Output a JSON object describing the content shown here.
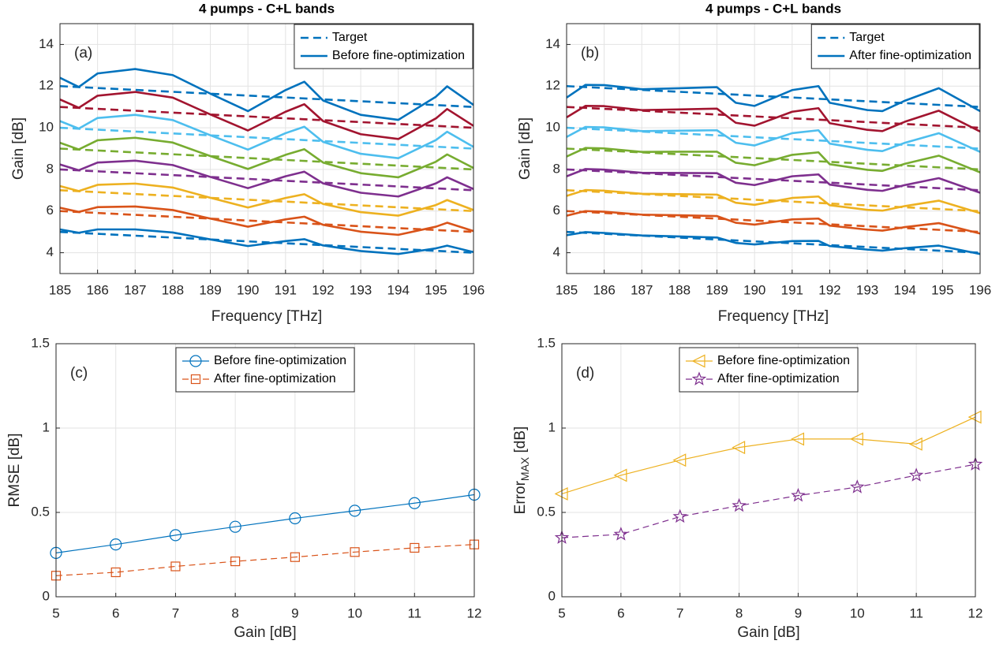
{
  "chart_data": [
    {
      "type": "line",
      "title": "4 pumps - C+L bands",
      "panel_label": "(a)",
      "xlabel": "Frequency [THz]",
      "ylabel": "Gain [dB]",
      "xlim": [
        185,
        196
      ],
      "ylim": [
        3,
        15
      ],
      "xticks": [
        185,
        186,
        187,
        188,
        189,
        190,
        191,
        192,
        193,
        194,
        195,
        196
      ],
      "yticks": [
        4,
        6,
        8,
        10,
        12,
        14
      ],
      "grid": true,
      "legend_location": "northeast",
      "series": [
        {
          "name": "Target",
          "color": "#0072BD",
          "line_style": "dashed",
          "x": [
            185,
            196
          ],
          "values": [
            5,
            4
          ]
        },
        {
          "name": "Before fine-optimization",
          "color": "#0072BD",
          "line_style": "solid",
          "x": [
            185,
            185.5,
            186,
            187,
            188,
            189,
            190,
            191,
            191.5,
            192,
            193,
            194,
            195,
            195.3,
            196
          ],
          "values": [
            5.12,
            4.96,
            5.12,
            5.12,
            4.97,
            4.64,
            4.32,
            4.56,
            4.65,
            4.35,
            4.08,
            3.94,
            4.21,
            4.34,
            4.03
          ]
        },
        {
          "color": "#D95319",
          "line_style": "dashed",
          "x": [
            185,
            196
          ],
          "values": [
            6,
            5
          ]
        },
        {
          "color": "#D95319",
          "line_style": "solid",
          "x": [
            185,
            185.5,
            186,
            187,
            188,
            189,
            190,
            191,
            191.5,
            192,
            193,
            194,
            195,
            195.3,
            196
          ],
          "values": [
            6.16,
            5.96,
            6.19,
            6.22,
            6.05,
            5.64,
            5.25,
            5.6,
            5.73,
            5.34,
            5.01,
            4.86,
            5.25,
            5.44,
            5.04
          ]
        },
        {
          "color": "#EDB120",
          "line_style": "dashed",
          "x": [
            185,
            196
          ],
          "values": [
            7,
            6
          ]
        },
        {
          "color": "#EDB120",
          "line_style": "solid",
          "x": [
            185,
            185.5,
            186,
            187,
            188,
            189,
            190,
            191,
            191.5,
            192,
            193,
            194,
            195,
            195.3,
            196
          ],
          "values": [
            7.2,
            6.96,
            7.26,
            7.32,
            7.13,
            6.64,
            6.17,
            6.63,
            6.81,
            6.34,
            5.95,
            5.78,
            6.29,
            6.53,
            6.05
          ]
        },
        {
          "color": "#7E2F8E",
          "line_style": "dashed",
          "x": [
            185,
            196
          ],
          "values": [
            8,
            7
          ]
        },
        {
          "color": "#7E2F8E",
          "line_style": "solid",
          "x": [
            185,
            185.5,
            186,
            187,
            188,
            189,
            190,
            191,
            191.5,
            192,
            193,
            194,
            195,
            195.3,
            196
          ],
          "values": [
            8.24,
            7.96,
            8.33,
            8.42,
            8.21,
            7.64,
            7.1,
            7.67,
            7.89,
            7.33,
            6.88,
            6.7,
            7.33,
            7.62,
            7.06
          ]
        },
        {
          "color": "#77AC30",
          "line_style": "dashed",
          "x": [
            185,
            196
          ],
          "values": [
            9,
            8
          ]
        },
        {
          "color": "#77AC30",
          "line_style": "solid",
          "x": [
            185,
            185.5,
            186,
            187,
            188,
            189,
            190,
            191,
            191.5,
            192,
            193,
            194,
            195,
            195.3,
            196
          ],
          "values": [
            9.28,
            8.96,
            9.4,
            9.52,
            9.29,
            8.64,
            8.02,
            8.7,
            8.97,
            8.33,
            7.82,
            7.62,
            8.37,
            8.72,
            8.07
          ]
        },
        {
          "color": "#4DBEEE",
          "line_style": "dashed",
          "x": [
            185,
            196
          ],
          "values": [
            10,
            9
          ]
        },
        {
          "color": "#4DBEEE",
          "line_style": "solid",
          "x": [
            185,
            185.5,
            186,
            187,
            188,
            189,
            190,
            191,
            191.5,
            192,
            193,
            194,
            195,
            195.3,
            196
          ],
          "values": [
            10.32,
            9.96,
            10.47,
            10.62,
            10.37,
            9.64,
            8.95,
            9.74,
            10.05,
            9.32,
            8.75,
            8.54,
            9.41,
            9.81,
            9.08
          ]
        },
        {
          "color": "#A2142F",
          "line_style": "dashed",
          "x": [
            185,
            196
          ],
          "values": [
            11,
            10
          ]
        },
        {
          "color": "#A2142F",
          "line_style": "solid",
          "x": [
            185,
            185.5,
            186,
            187,
            188,
            189,
            190,
            191,
            191.5,
            192,
            193,
            194,
            195,
            195.3,
            196
          ],
          "values": [
            11.36,
            10.96,
            11.54,
            11.72,
            11.45,
            10.64,
            9.87,
            10.77,
            11.13,
            10.32,
            9.69,
            9.46,
            10.45,
            10.9,
            10.09
          ]
        },
        {
          "color": "#0072BD",
          "line_style": "dashed",
          "x": [
            185,
            196
          ],
          "values": [
            12,
            11
          ]
        },
        {
          "color": "#0072BD",
          "line_style": "solid",
          "x": [
            185,
            185.5,
            186,
            187,
            188,
            189,
            190,
            191,
            191.5,
            192,
            193,
            194,
            195,
            195.3,
            196
          ],
          "values": [
            12.4,
            11.96,
            12.61,
            12.82,
            12.53,
            11.64,
            10.8,
            11.81,
            12.21,
            11.31,
            10.62,
            10.38,
            11.49,
            11.99,
            11.1
          ]
        }
      ]
    },
    {
      "type": "line",
      "title": "4 pumps - C+L bands",
      "panel_label": "(b)",
      "xlabel": "Frequency [THz]",
      "ylabel": "Gain [dB]",
      "xlim": [
        185,
        196
      ],
      "ylim": [
        3,
        15
      ],
      "xticks": [
        185,
        186,
        187,
        188,
        189,
        190,
        191,
        192,
        193,
        194,
        195,
        196
      ],
      "yticks": [
        4,
        6,
        8,
        10,
        12,
        14
      ],
      "grid": true,
      "legend_location": "northeast",
      "series": [
        {
          "name": "Target",
          "color": "#0072BD",
          "line_style": "dashed",
          "x": [
            185,
            196
          ],
          "values": [
            5,
            4
          ]
        },
        {
          "name": "After fine-optimization",
          "color": "#0072BD",
          "line_style": "solid",
          "x": [
            185,
            185.5,
            186,
            187,
            188,
            189,
            189.5,
            190,
            191,
            191.7,
            192,
            193,
            193.4,
            194,
            194.9,
            196
          ],
          "values": [
            4.84,
            4.99,
            4.95,
            4.83,
            4.78,
            4.73,
            4.47,
            4.4,
            4.56,
            4.57,
            4.32,
            4.15,
            4.1,
            4.22,
            4.34,
            3.94
          ]
        },
        {
          "color": "#D95319",
          "line_style": "dashed",
          "x": [
            185,
            196
          ],
          "values": [
            6,
            5
          ]
        },
        {
          "color": "#D95319",
          "line_style": "solid",
          "x": [
            185,
            185.5,
            186,
            187,
            188,
            189,
            189.5,
            190,
            191,
            191.7,
            192,
            193,
            193.4,
            194,
            194.9,
            196
          ],
          "values": [
            5.78,
            6.0,
            5.97,
            5.83,
            5.8,
            5.76,
            5.44,
            5.35,
            5.6,
            5.64,
            5.3,
            5.11,
            5.06,
            5.23,
            5.42,
            4.92
          ]
        },
        {
          "color": "#EDB120",
          "line_style": "dashed",
          "x": [
            185,
            196
          ],
          "values": [
            7,
            6
          ]
        },
        {
          "color": "#EDB120",
          "line_style": "solid",
          "x": [
            185,
            185.5,
            186,
            187,
            188,
            189,
            189.5,
            190,
            191,
            191.7,
            192,
            193,
            193.4,
            194,
            194.9,
            196
          ],
          "values": [
            6.73,
            7.01,
            6.98,
            6.83,
            6.81,
            6.79,
            6.4,
            6.3,
            6.63,
            6.7,
            6.28,
            6.06,
            6.02,
            6.24,
            6.5,
            5.9
          ]
        },
        {
          "color": "#7E2F8E",
          "line_style": "dashed",
          "x": [
            185,
            196
          ],
          "values": [
            8,
            7
          ]
        },
        {
          "color": "#7E2F8E",
          "line_style": "solid",
          "x": [
            185,
            185.5,
            186,
            187,
            188,
            189,
            189.5,
            190,
            191,
            191.7,
            192,
            193,
            193.4,
            194,
            194.9,
            196
          ],
          "values": [
            7.67,
            8.02,
            7.99,
            7.84,
            7.83,
            7.82,
            7.36,
            7.25,
            7.67,
            7.76,
            7.27,
            7.02,
            6.97,
            7.25,
            7.58,
            6.88
          ]
        },
        {
          "color": "#77AC30",
          "line_style": "dashed",
          "x": [
            185,
            196
          ],
          "values": [
            9,
            8
          ]
        },
        {
          "color": "#77AC30",
          "line_style": "solid",
          "x": [
            185,
            185.5,
            186,
            187,
            188,
            189,
            189.5,
            190,
            191,
            191.7,
            192,
            193,
            193.4,
            194,
            194.9,
            196
          ],
          "values": [
            8.62,
            9.03,
            9.01,
            8.84,
            8.85,
            8.85,
            8.32,
            8.2,
            8.7,
            8.82,
            8.25,
            7.98,
            7.93,
            8.27,
            8.66,
            7.86
          ]
        },
        {
          "color": "#4DBEEE",
          "line_style": "dashed",
          "x": [
            185,
            196
          ],
          "values": [
            10,
            9
          ]
        },
        {
          "color": "#4DBEEE",
          "line_style": "solid",
          "x": [
            185,
            185.5,
            186,
            187,
            188,
            189,
            189.5,
            190,
            191,
            191.7,
            192,
            193,
            193.4,
            194,
            194.9,
            196
          ],
          "values": [
            9.56,
            10.04,
            10.02,
            9.84,
            9.86,
            9.88,
            9.28,
            9.15,
            9.74,
            9.88,
            9.24,
            8.94,
            8.88,
            9.28,
            9.74,
            8.84
          ]
        },
        {
          "color": "#A2142F",
          "line_style": "dashed",
          "x": [
            185,
            196
          ],
          "values": [
            11,
            10
          ]
        },
        {
          "color": "#A2142F",
          "line_style": "solid",
          "x": [
            185,
            185.5,
            186,
            187,
            188,
            189,
            189.5,
            190,
            191,
            191.7,
            192,
            193,
            193.4,
            194,
            194.9,
            196
          ],
          "values": [
            10.5,
            11.05,
            11.04,
            10.85,
            10.88,
            10.92,
            10.24,
            10.1,
            10.77,
            10.94,
            10.22,
            9.9,
            9.84,
            10.29,
            10.82,
            9.82
          ]
        },
        {
          "color": "#0072BD",
          "line_style": "dashed",
          "x": [
            185,
            196
          ],
          "values": [
            12,
            11
          ]
        },
        {
          "color": "#0072BD",
          "line_style": "solid",
          "x": [
            185,
            185.5,
            186,
            187,
            188,
            189,
            189.5,
            190,
            191,
            191.7,
            192,
            193,
            193.4,
            194,
            194.9,
            196
          ],
          "values": [
            11.45,
            12.06,
            12.05,
            11.85,
            11.9,
            11.95,
            11.2,
            11.05,
            11.81,
            12.0,
            11.2,
            10.85,
            10.8,
            11.3,
            11.9,
            10.8
          ]
        }
      ]
    },
    {
      "type": "line",
      "panel_label": "(c)",
      "xlabel": "Gain [dB]",
      "ylabel": "RMSE [dB]",
      "xlim": [
        5,
        12
      ],
      "ylim": [
        0,
        1.5
      ],
      "xticks": [
        5,
        6,
        7,
        8,
        9,
        10,
        11,
        12
      ],
      "yticks": [
        0,
        0.5,
        1,
        1.5
      ],
      "grid": true,
      "legend_location": "north",
      "x": [
        5,
        6,
        7,
        8,
        9,
        10,
        11,
        12
      ],
      "series": [
        {
          "name": "Before fine-optimization",
          "color": "#0072BD",
          "line_style": "solid",
          "marker": "circle",
          "values": [
            0.26,
            0.31,
            0.365,
            0.415,
            0.465,
            0.51,
            0.555,
            0.605
          ]
        },
        {
          "name": "After fine-optimization",
          "color": "#D95319",
          "line_style": "dashed",
          "marker": "square",
          "values": [
            0.125,
            0.145,
            0.18,
            0.21,
            0.235,
            0.265,
            0.29,
            0.31
          ]
        }
      ]
    },
    {
      "type": "line",
      "panel_label": "(d)",
      "xlabel": "Gain [dB]",
      "ylabel": {
        "text": "Error",
        "subscript": "MAX",
        "suffix": " [dB]"
      },
      "xlim": [
        5,
        12
      ],
      "ylim": [
        0,
        1.5
      ],
      "xticks": [
        5,
        6,
        7,
        8,
        9,
        10,
        11,
        12
      ],
      "yticks": [
        0,
        0.5,
        1,
        1.5
      ],
      "grid": true,
      "legend_location": "north",
      "x": [
        5,
        6,
        7,
        8,
        9,
        10,
        11,
        12
      ],
      "series": [
        {
          "name": "Before fine-optimization",
          "color": "#EDB120",
          "line_style": "solid",
          "marker": "triangle-left",
          "values": [
            0.61,
            0.72,
            0.81,
            0.885,
            0.935,
            0.935,
            0.905,
            1.065
          ]
        },
        {
          "name": "After fine-optimization",
          "color": "#7E2F8E",
          "line_style": "dashed",
          "marker": "star",
          "values": [
            0.35,
            0.37,
            0.475,
            0.54,
            0.6,
            0.65,
            0.72,
            0.785
          ]
        }
      ]
    }
  ]
}
